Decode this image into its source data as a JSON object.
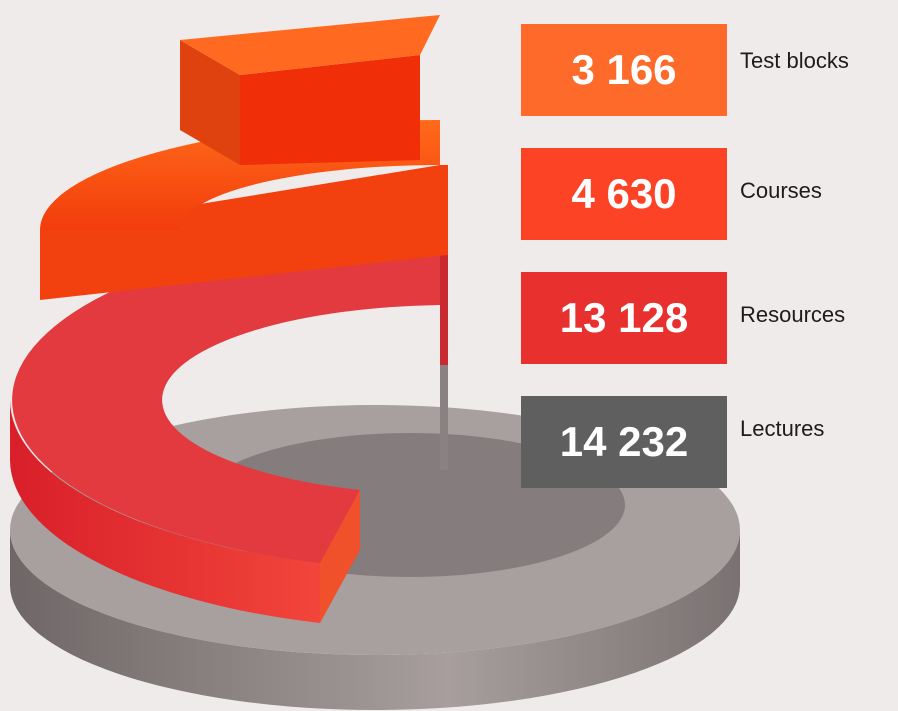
{
  "stats": [
    {
      "value": "3 166",
      "label": "Test blocks"
    },
    {
      "value": "4 630",
      "label": "Courses"
    },
    {
      "value": "13 128",
      "label": "Resources"
    },
    {
      "value": "14 232",
      "label": "Lectures"
    }
  ]
}
